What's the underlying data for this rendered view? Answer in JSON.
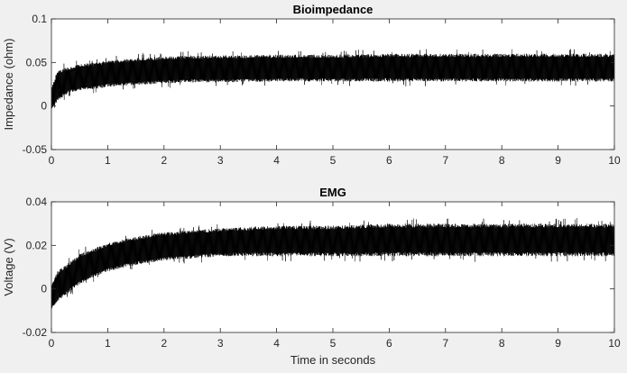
{
  "figure": {
    "background": "#f0f0f0",
    "axes_background": "#ffffff",
    "axes_color": "#262626",
    "trace_color": "#000000"
  },
  "chart_data": [
    {
      "type": "line",
      "title": "Bioimpedance",
      "xlabel": "",
      "ylabel": "Impedance (ohm)",
      "xlim": [
        0,
        10
      ],
      "ylim": [
        -0.05,
        0.1
      ],
      "xticks": [
        0,
        1,
        2,
        3,
        4,
        5,
        6,
        7,
        8,
        9,
        10
      ],
      "yticks": [
        -0.05,
        0,
        0.05,
        0.1
      ],
      "xtick_labels": [
        "0",
        "1",
        "2",
        "3",
        "4",
        "5",
        "6",
        "7",
        "8",
        "9",
        "10"
      ],
      "ytick_labels": [
        "-0.05",
        "0",
        "0.05",
        "0.1"
      ],
      "grid": false,
      "series": [
        {
          "style": "dense oscillating band",
          "x": [
            0,
            0.1,
            0.3,
            0.5,
            0.8,
            1,
            1.5,
            2,
            2.5,
            3,
            4,
            5,
            6,
            7,
            8,
            9,
            10
          ],
          "upper": [
            0.02,
            0.04,
            0.045,
            0.048,
            0.05,
            0.052,
            0.055,
            0.057,
            0.058,
            0.058,
            0.059,
            0.059,
            0.06,
            0.06,
            0.06,
            0.06,
            0.06
          ],
          "lower": [
            -0.005,
            0.005,
            0.015,
            0.018,
            0.02,
            0.022,
            0.024,
            0.026,
            0.027,
            0.027,
            0.028,
            0.028,
            0.028,
            0.028,
            0.028,
            0.028,
            0.028
          ]
        }
      ]
    },
    {
      "type": "line",
      "title": "EMG",
      "xlabel": "Time in seconds",
      "ylabel": "Voltage (V)",
      "xlim": [
        0,
        10
      ],
      "ylim": [
        -0.02,
        0.04
      ],
      "xticks": [
        0,
        1,
        2,
        3,
        4,
        5,
        6,
        7,
        8,
        9,
        10
      ],
      "yticks": [
        -0.02,
        0,
        0.02,
        0.04
      ],
      "xtick_labels": [
        "0",
        "1",
        "2",
        "3",
        "4",
        "5",
        "6",
        "7",
        "8",
        "9",
        "10"
      ],
      "ytick_labels": [
        "-0.02",
        "0",
        "0.02",
        "0.04"
      ],
      "grid": false,
      "series": [
        {
          "style": "dense oscillating band",
          "x": [
            0,
            0.1,
            0.3,
            0.5,
            0.8,
            1,
            1.5,
            2,
            2.5,
            3,
            4,
            5,
            6,
            7,
            8,
            9,
            10
          ],
          "upper": [
            0.002,
            0.008,
            0.012,
            0.016,
            0.019,
            0.021,
            0.024,
            0.026,
            0.027,
            0.028,
            0.029,
            0.029,
            0.03,
            0.03,
            0.03,
            0.03,
            0.03
          ],
          "lower": [
            -0.01,
            -0.006,
            -0.002,
            0.002,
            0.006,
            0.008,
            0.011,
            0.013,
            0.014,
            0.015,
            0.015,
            0.015,
            0.015,
            0.015,
            0.015,
            0.015,
            0.015
          ]
        }
      ]
    }
  ]
}
